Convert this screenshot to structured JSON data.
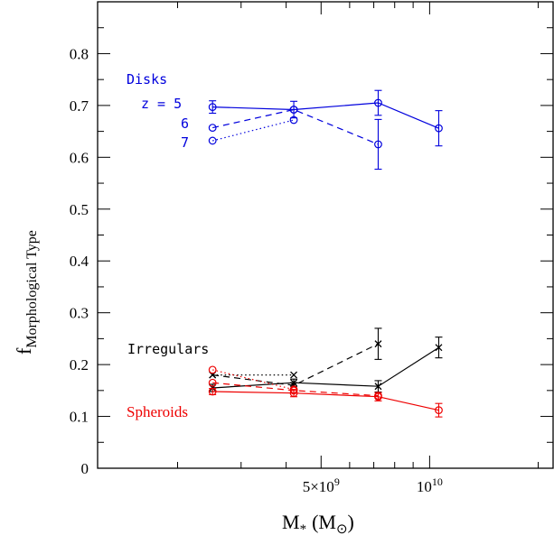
{
  "chart_data": {
    "type": "line",
    "xlabel": "M",
    "xlabel_sub": "*",
    "xlabel_unit": "(M",
    "xlabel_unit_sub": "⊙",
    "xlabel_unit_close": ")",
    "ylabel": "f",
    "ylabel_sub": "Morphological Type",
    "x_scale": "log",
    "xlim": [
      1200000000.0,
      22000000000.0
    ],
    "ylim": [
      0,
      0.9
    ],
    "y_ticks": [
      "0",
      "0.1",
      "0.2",
      "0.3",
      "0.4",
      "0.5",
      "0.6",
      "0.7",
      "0.8"
    ],
    "x_tick_labels": [
      {
        "value": 5000000000.0,
        "base": "5×10",
        "exp": "9"
      },
      {
        "value": 10000000000.0,
        "base": "10",
        "exp": "10"
      }
    ],
    "grid": false,
    "colors": {
      "disks": "#0000dd",
      "irregulars": "#000000",
      "spheroids": "#ee0000"
    },
    "annotations": {
      "disks": "Disks",
      "z5": "z = 5",
      "z6": "6",
      "z7": "7",
      "irregulars": "Irregulars",
      "spheroids": "Spheroids"
    },
    "series": [
      {
        "group": "disks",
        "redshift": 5,
        "style": "solid",
        "marker": "circle",
        "x": [
          2500000000.0,
          4200000000.0,
          7200000000.0,
          10600000000.0
        ],
        "y": [
          0.697,
          0.692,
          0.705,
          0.656
        ],
        "err": [
          0.012,
          0.016,
          0.024,
          0.034
        ]
      },
      {
        "group": "disks",
        "redshift": 6,
        "style": "dashed",
        "marker": "circle",
        "x": [
          2500000000.0,
          4200000000.0,
          7200000000.0
        ],
        "y": [
          0.657,
          0.692,
          0.625
        ],
        "err": [
          0,
          0,
          0.048
        ]
      },
      {
        "group": "disks",
        "redshift": 7,
        "style": "dotted",
        "marker": "circle",
        "x": [
          2500000000.0,
          4200000000.0
        ],
        "y": [
          0.632,
          0.672
        ],
        "err": [
          0,
          0
        ]
      },
      {
        "group": "irregulars",
        "redshift": 5,
        "style": "solid",
        "marker": "cross",
        "x": [
          2500000000.0,
          4200000000.0,
          7200000000.0,
          10600000000.0
        ],
        "y": [
          0.155,
          0.165,
          0.158,
          0.233
        ],
        "err": [
          0.007,
          0.007,
          0.011,
          0.02
        ]
      },
      {
        "group": "irregulars",
        "redshift": 6,
        "style": "dashed",
        "marker": "cross",
        "x": [
          2500000000.0,
          4200000000.0,
          7200000000.0
        ],
        "y": [
          0.18,
          0.16,
          0.24
        ],
        "err": [
          0,
          0,
          0.03
        ]
      },
      {
        "group": "irregulars",
        "redshift": 7,
        "style": "dotted",
        "marker": "cross",
        "x": [
          2500000000.0,
          4200000000.0
        ],
        "y": [
          0.18,
          0.18
        ],
        "err": [
          0,
          0
        ]
      },
      {
        "group": "spheroids",
        "redshift": 5,
        "style": "solid",
        "marker": "circle",
        "x": [
          2500000000.0,
          4200000000.0,
          7200000000.0,
          10600000000.0
        ],
        "y": [
          0.148,
          0.145,
          0.138,
          0.112
        ],
        "err": [
          0.006,
          0.007,
          0.008,
          0.013
        ]
      },
      {
        "group": "spheroids",
        "redshift": 6,
        "style": "dashed",
        "marker": "circle",
        "x": [
          2500000000.0,
          4200000000.0,
          7200000000.0
        ],
        "y": [
          0.165,
          0.15,
          0.14
        ],
        "err": [
          0,
          0,
          0
        ]
      },
      {
        "group": "spheroids",
        "redshift": 7,
        "style": "dotted",
        "marker": "circle",
        "x": [
          2500000000.0,
          4200000000.0
        ],
        "y": [
          0.19,
          0.152
        ],
        "err": [
          0,
          0
        ]
      }
    ]
  }
}
